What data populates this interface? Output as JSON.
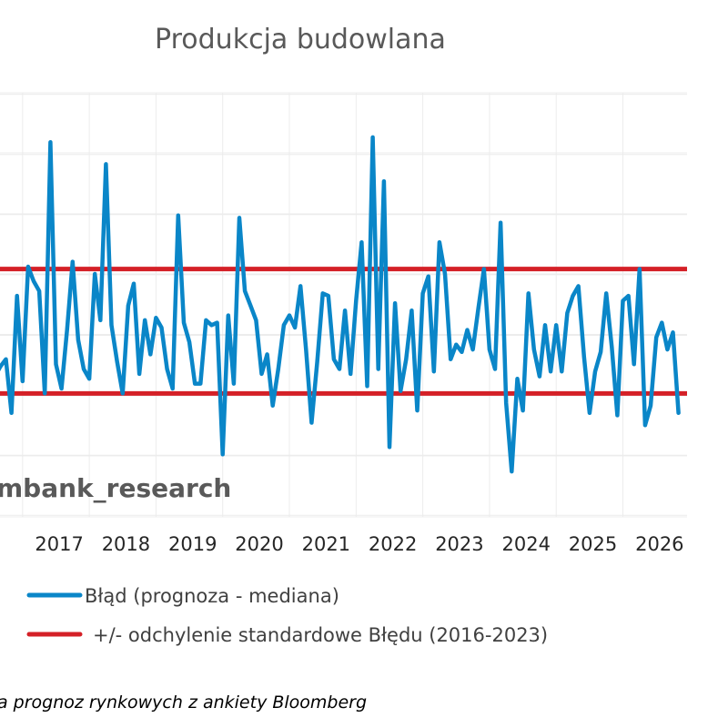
{
  "chart_data": {
    "type": "line",
    "title": "Produkcja budowlana",
    "xlabel": "",
    "ylabel": "",
    "x_ticks": [
      "6",
      "2017",
      "2018",
      "2019",
      "2020",
      "2021",
      "2022",
      "2023",
      "2024",
      "2025",
      "2026"
    ],
    "x_tick_values": [
      2016.0,
      2017.0,
      2018.0,
      2019.0,
      2020.0,
      2021.0,
      2022.0,
      2023.0,
      2024.0,
      2025.0,
      2026.0
    ],
    "xlim": [
      2016.0,
      2026.55
    ],
    "ylim": [
      -7,
      9.5
    ],
    "grid": true,
    "series": [
      {
        "name": "Błąd (prognoza - mediana)",
        "color": "#0a86c8",
        "x_start": 2016.0,
        "x_step": 0.083333,
        "values": [
          0.0,
          -1.7,
          -1.3,
          -1.0,
          -3.2,
          1.6,
          -1.9,
          2.8,
          2.2,
          1.8,
          -2.4,
          7.9,
          -1.2,
          -2.2,
          0.2,
          3.0,
          -0.2,
          -1.4,
          -1.8,
          2.5,
          0.6,
          7.0,
          0.4,
          -1.1,
          -2.4,
          1.2,
          2.1,
          -1.6,
          0.6,
          -0.8,
          0.7,
          0.3,
          -1.4,
          -2.2,
          4.9,
          0.5,
          -0.3,
          -2.0,
          -2.0,
          0.6,
          0.4,
          0.5,
          -4.9,
          0.8,
          -2.0,
          4.8,
          1.8,
          1.2,
          0.6,
          -1.6,
          -0.8,
          -2.9,
          -1.4,
          0.4,
          0.8,
          0.3,
          2.0,
          -0.6,
          -3.6,
          -1.1,
          1.7,
          1.6,
          -1.0,
          -1.4,
          1.0,
          -1.6,
          1.4,
          3.8,
          -2.1,
          8.1,
          -1.4,
          6.3,
          -4.6,
          1.3,
          -2.3,
          -1.0,
          1.0,
          -3.1,
          1.7,
          2.4,
          -1.5,
          3.8,
          2.5,
          -1.0,
          -0.4,
          -0.7,
          0.2,
          -0.6,
          1.1,
          2.7,
          -0.6,
          -1.4,
          4.6,
          -2.8,
          -5.6,
          -1.8,
          -3.1,
          1.7,
          -0.6,
          -1.7,
          0.4,
          -1.5,
          0.4,
          -1.5,
          0.9,
          1.6,
          2.0,
          -0.9,
          -3.2,
          -1.5,
          -0.7,
          1.7,
          -0.5,
          -3.3,
          1.4,
          1.6,
          -1.2,
          2.7,
          -3.7,
          -2.9,
          -0.1,
          0.5,
          -0.6,
          0.1,
          -3.2
        ]
      },
      {
        "name": "+/- odchylenie standardowe Błędu (2016-2023)",
        "color": "#d42027",
        "type": "hlines",
        "values": [
          2.7,
          -2.4
        ]
      }
    ],
    "legend": "bottom-left"
  },
  "watermark": "mbank_research",
  "source": "a prognoz rynkowych z ankiety Bloomberg"
}
